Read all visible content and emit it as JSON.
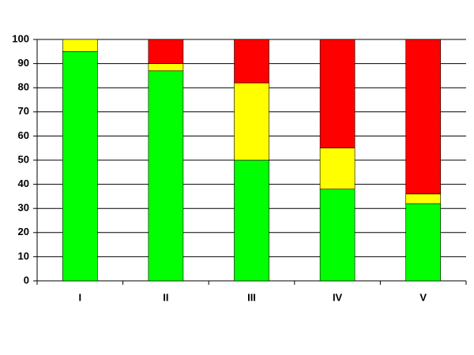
{
  "chart_data": {
    "type": "stacked-bar",
    "categories": [
      "I",
      "II",
      "III",
      "IV",
      "V"
    ],
    "series": [
      {
        "color": "#00ff00",
        "values": [
          95,
          87,
          50,
          38,
          32
        ]
      },
      {
        "color": "#ffff00",
        "values": [
          5,
          3,
          32,
          17,
          4
        ]
      },
      {
        "color": "#ff0000",
        "values": [
          0,
          10,
          18,
          45,
          64
        ]
      }
    ],
    "ylim": [
      0,
      100
    ],
    "yticks": [
      0,
      10,
      20,
      30,
      40,
      50,
      60,
      70,
      80,
      90,
      100
    ],
    "grid": true
  }
}
